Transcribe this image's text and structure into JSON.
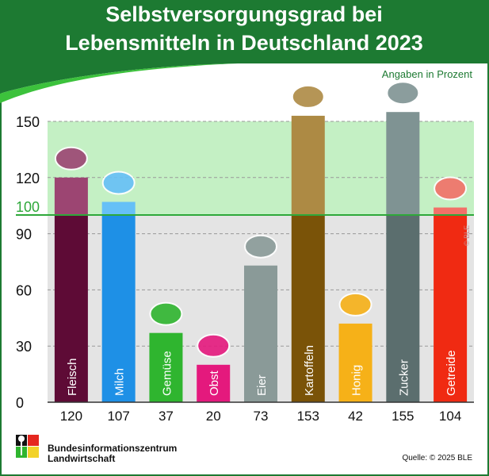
{
  "chart_data": {
    "type": "bar",
    "title": "Selbstversorgungsgrad bei Lebensmitteln in Deutschland 2023",
    "title_lines": [
      "Selbstversorgungsgrad bei",
      "Lebensmitteln in Deutschland 2023"
    ],
    "unit_note": "Angaben in Prozent",
    "categories": [
      "Fleisch",
      "Milch",
      "Gemüse",
      "Obst",
      "Eier",
      "Kartoffeln",
      "Honig",
      "Zucker",
      "Getreide"
    ],
    "values": [
      120,
      107,
      37,
      20,
      73,
      153,
      42,
      155,
      104
    ],
    "value_labels": [
      "120",
      "107",
      "37",
      "20",
      "73",
      "153",
      "42",
      "155",
      "104"
    ],
    "icons": [
      "meat-icon",
      "milk-bottles-icon",
      "vegetables-icon",
      "fruit-icon",
      "eggs-icon",
      "potatoes-icon",
      "honeycomb-icon",
      "sugar-cubes-icon",
      "grain-icon"
    ],
    "colors": [
      "#5e0b36",
      "#1e90e6",
      "#2fb52f",
      "#e4197d",
      "#8a9a98",
      "#7a5308",
      "#f6b118",
      "#5b6e6e",
      "#f02a12"
    ],
    "colors_above_100": [
      "#9c4572",
      "#66c0f7",
      "#2fb52f",
      "#e4197d",
      "#8a9a98",
      "#ad8a44",
      "#f6b118",
      "#7f9393",
      "#f27068"
    ],
    "ylim": [
      0,
      150
    ],
    "yticks": [
      0,
      30,
      60,
      90,
      120,
      150
    ],
    "reference_line": {
      "value": 100,
      "label": "100",
      "color": "#2ea83a"
    },
    "grid": true,
    "copyright_vertical": "© BLE"
  },
  "footer": {
    "org_line1": "Bundesinformationszentrum",
    "org_line2": "Landwirtschaft",
    "source": "Quelle: © 2025 BLE"
  },
  "colors": {
    "header_green": "#1d7a32",
    "bright_green": "#3cc23c",
    "band_green": "#c4f0c4",
    "band_gray": "#e4e4e4"
  }
}
